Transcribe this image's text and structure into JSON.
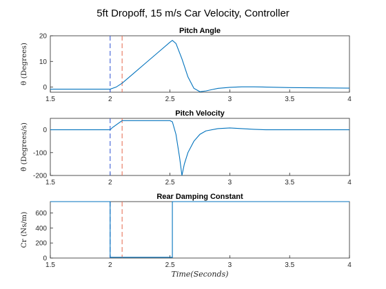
{
  "figure_title": "5ft Dropoff,   15 m/s Car Velocity,  Controller",
  "xlabel": "Time(Seconds)",
  "colors": {
    "series": "#0072bd",
    "marker_blue": "#3b5fd6",
    "marker_red": "#e8735a"
  },
  "chart_data": [
    {
      "type": "line",
      "title": "Pitch Angle",
      "ylabel": "θ (Degrees)",
      "xlabel": "",
      "xlim": [
        1.5,
        4
      ],
      "ylim": [
        -2,
        20
      ],
      "xticks": [
        1.5,
        2,
        2.5,
        3,
        3.5,
        4
      ],
      "xtick_labels": [
        "1.5",
        "2",
        "2.5",
        "3",
        "3.5",
        "4"
      ],
      "yticks": [
        0,
        10,
        20
      ],
      "ytick_labels": [
        "0",
        "10",
        "20"
      ],
      "vlines": [
        2.0,
        2.1
      ],
      "series": [
        {
          "x": [
            1.5,
            2.0,
            2.05,
            2.1,
            2.2,
            2.3,
            2.4,
            2.5,
            2.52,
            2.55,
            2.6,
            2.65,
            2.7,
            2.75,
            2.8,
            2.85,
            2.9,
            3.0,
            3.1,
            3.2,
            3.5,
            4.0
          ],
          "y": [
            -0.8,
            -0.8,
            0.0,
            1.5,
            5.5,
            9.5,
            13.5,
            17.5,
            18.2,
            17.0,
            11.0,
            4.0,
            -0.5,
            -1.8,
            -1.5,
            -1.0,
            -0.5,
            -0.1,
            0.1,
            0.1,
            -0.2,
            -0.4
          ]
        }
      ]
    },
    {
      "type": "line",
      "title": "Pitch Velocity",
      "ylabel": "θ̇ (Degrees/s)",
      "xlabel": "",
      "xlim": [
        1.5,
        4
      ],
      "ylim": [
        -200,
        50
      ],
      "xticks": [
        1.5,
        2,
        2.5,
        3,
        3.5,
        4
      ],
      "xtick_labels": [
        "1.5",
        "2",
        "2.5",
        "3",
        "3.5",
        "4"
      ],
      "yticks": [
        -200,
        -100,
        0
      ],
      "ytick_labels": [
        "-200",
        "-100",
        "0"
      ],
      "vlines": [
        2.0,
        2.1
      ],
      "series": [
        {
          "x": [
            1.5,
            2.0,
            2.02,
            2.1,
            2.15,
            2.4,
            2.5,
            2.52,
            2.55,
            2.58,
            2.6,
            2.62,
            2.65,
            2.7,
            2.75,
            2.8,
            2.9,
            3.0,
            3.1,
            3.2,
            3.3,
            4.0
          ],
          "y": [
            0,
            0,
            10,
            40,
            40,
            40,
            40,
            35,
            -20,
            -120,
            -200,
            -150,
            -100,
            -50,
            -20,
            -5,
            5,
            8,
            5,
            2,
            0,
            0
          ]
        }
      ]
    },
    {
      "type": "line",
      "title": "Rear Damping Constant",
      "ylabel": "Cr (Ns/m)",
      "xlabel": "Time(Seconds)",
      "xlim": [
        1.5,
        4
      ],
      "ylim": [
        0,
        750
      ],
      "xticks": [
        1.5,
        2,
        2.5,
        3,
        3.5,
        4
      ],
      "xtick_labels": [
        "1.5",
        "2",
        "2.5",
        "3",
        "3.5",
        "4"
      ],
      "yticks": [
        0,
        200,
        400,
        600
      ],
      "ytick_labels": [
        "0",
        "200",
        "400",
        "600"
      ],
      "vlines": [
        2.0,
        2.1
      ],
      "series": [
        {
          "x": [
            1.5,
            2.0,
            2.0,
            2.52,
            2.52,
            4.0
          ],
          "y": [
            750,
            750,
            10,
            10,
            750,
            750
          ]
        }
      ]
    }
  ]
}
